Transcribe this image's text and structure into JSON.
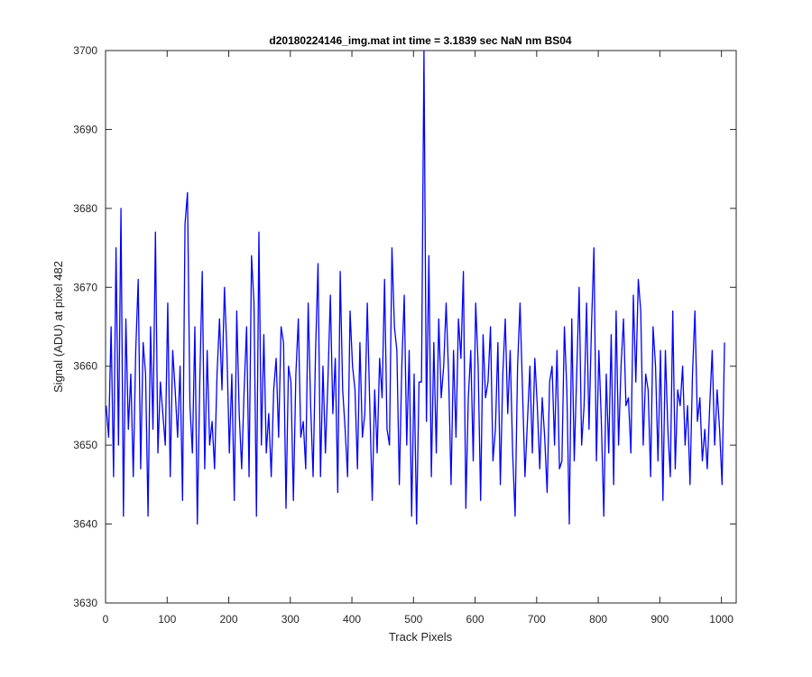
{
  "chart_data": {
    "type": "line",
    "title": "d20180224146_img.mat int time = 3.1839 sec  NaN nm BS04",
    "xlabel": "Track Pixels",
    "ylabel": "Signal (ADU) at pixel 482",
    "xlim": [
      0,
      1024
    ],
    "ylim": [
      3630,
      3700
    ],
    "xticks": [
      0,
      100,
      200,
      300,
      400,
      500,
      600,
      700,
      800,
      900,
      1000
    ],
    "yticks": [
      3630,
      3640,
      3650,
      3660,
      3670,
      3680,
      3690,
      3700
    ],
    "grid": false,
    "line_color": "#0000ff",
    "series": [
      {
        "x_start": 1,
        "x_step": 4,
        "values": [
          3655,
          3651,
          3665,
          3646,
          3675,
          3650,
          3680,
          3641,
          3666,
          3652,
          3659,
          3646,
          3662,
          3671,
          3647,
          3663,
          3659,
          3641,
          3665,
          3652,
          3677,
          3649,
          3658,
          3654,
          3650,
          3668,
          3646,
          3662,
          3657,
          3651,
          3660,
          3643,
          3678,
          3682,
          3655,
          3649,
          3665,
          3640,
          3658,
          3672,
          3647,
          3662,
          3650,
          3653,
          3647,
          3659,
          3666,
          3657,
          3670,
          3662,
          3649,
          3659,
          3643,
          3667,
          3654,
          3647,
          3657,
          3665,
          3646,
          3674,
          3668,
          3641,
          3677,
          3650,
          3664,
          3649,
          3654,
          3646,
          3657,
          3661,
          3651,
          3665,
          3663,
          3642,
          3660,
          3658,
          3643,
          3659,
          3666,
          3651,
          3653,
          3647,
          3668,
          3655,
          3646,
          3662,
          3673,
          3646,
          3660,
          3649,
          3658,
          3669,
          3654,
          3661,
          3644,
          3672,
          3657,
          3652,
          3646,
          3667,
          3660,
          3657,
          3647,
          3663,
          3651,
          3654,
          3668,
          3655,
          3643,
          3657,
          3649,
          3661,
          3656,
          3671,
          3652,
          3650,
          3675,
          3665,
          3662,
          3645,
          3660,
          3669,
          3650,
          3662,
          3641,
          3659,
          3640,
          3658,
          3658,
          3700,
          3653,
          3674,
          3646,
          3663,
          3649,
          3666,
          3656,
          3660,
          3668,
          3659,
          3645,
          3662,
          3651,
          3666,
          3661,
          3672,
          3642,
          3656,
          3662,
          3648,
          3668,
          3660,
          3643,
          3664,
          3656,
          3658,
          3665,
          3648,
          3652,
          3663,
          3645,
          3659,
          3666,
          3654,
          3662,
          3649,
          3641,
          3660,
          3668,
          3657,
          3646,
          3653,
          3660,
          3649,
          3661,
          3655,
          3647,
          3656,
          3651,
          3644,
          3658,
          3660,
          3650,
          3662,
          3647,
          3648,
          3665,
          3657,
          3640,
          3666,
          3648,
          3659,
          3670,
          3650,
          3655,
          3668,
          3652,
          3665,
          3675,
          3648,
          3662,
          3653,
          3641,
          3659,
          3649,
          3664,
          3645,
          3667,
          3650,
          3660,
          3666,
          3655,
          3656,
          3649,
          3669,
          3658,
          3671,
          3667,
          3650,
          3659,
          3657,
          3646,
          3665,
          3660,
          3648,
          3662,
          3643,
          3662,
          3652,
          3646,
          3667,
          3647,
          3657,
          3655,
          3660,
          3650,
          3655,
          3645,
          3659,
          3667,
          3653,
          3656,
          3648,
          3652,
          3647,
          3655,
          3662,
          3650,
          3657,
          3652,
          3645,
          3663
        ]
      }
    ]
  }
}
